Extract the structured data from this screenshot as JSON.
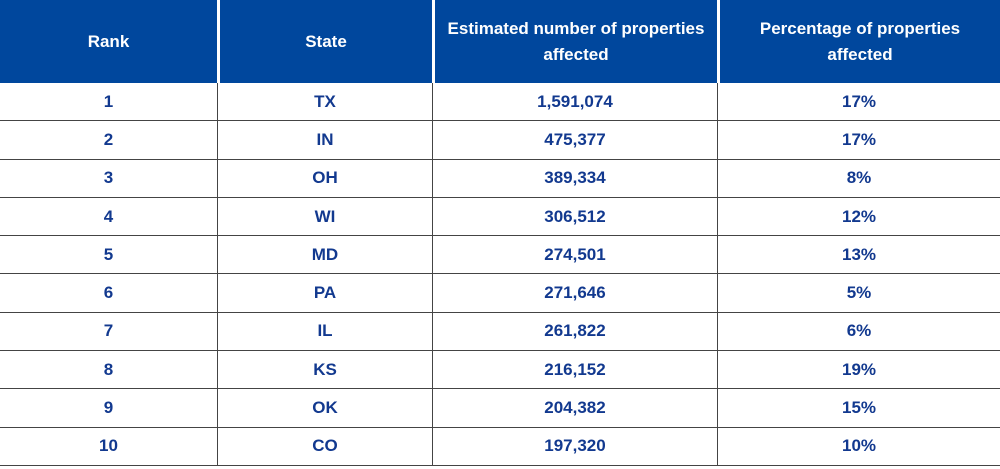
{
  "chart_data": {
    "type": "table",
    "columns": [
      "Rank",
      "State",
      "Estimated number of properties affected",
      "Percentage of properties affected"
    ],
    "rows": [
      [
        "1",
        "TX",
        "1,591,074",
        "17%"
      ],
      [
        "2",
        "IN",
        "475,377",
        "17%"
      ],
      [
        "3",
        "OH",
        "389,334",
        "8%"
      ],
      [
        "4",
        "WI",
        "306,512",
        "12%"
      ],
      [
        "5",
        "MD",
        "274,501",
        "13%"
      ],
      [
        "6",
        "PA",
        "271,646",
        "5%"
      ],
      [
        "7",
        "IL",
        "261,822",
        "6%"
      ],
      [
        "8",
        "KS",
        "216,152",
        "19%"
      ],
      [
        "9",
        "OK",
        "204,382",
        "15%"
      ],
      [
        "10",
        "CO",
        "197,320",
        "10%"
      ]
    ],
    "colors": {
      "header_bg": "#00479d",
      "header_text": "#ffffff",
      "cell_text": "#12398f"
    }
  }
}
